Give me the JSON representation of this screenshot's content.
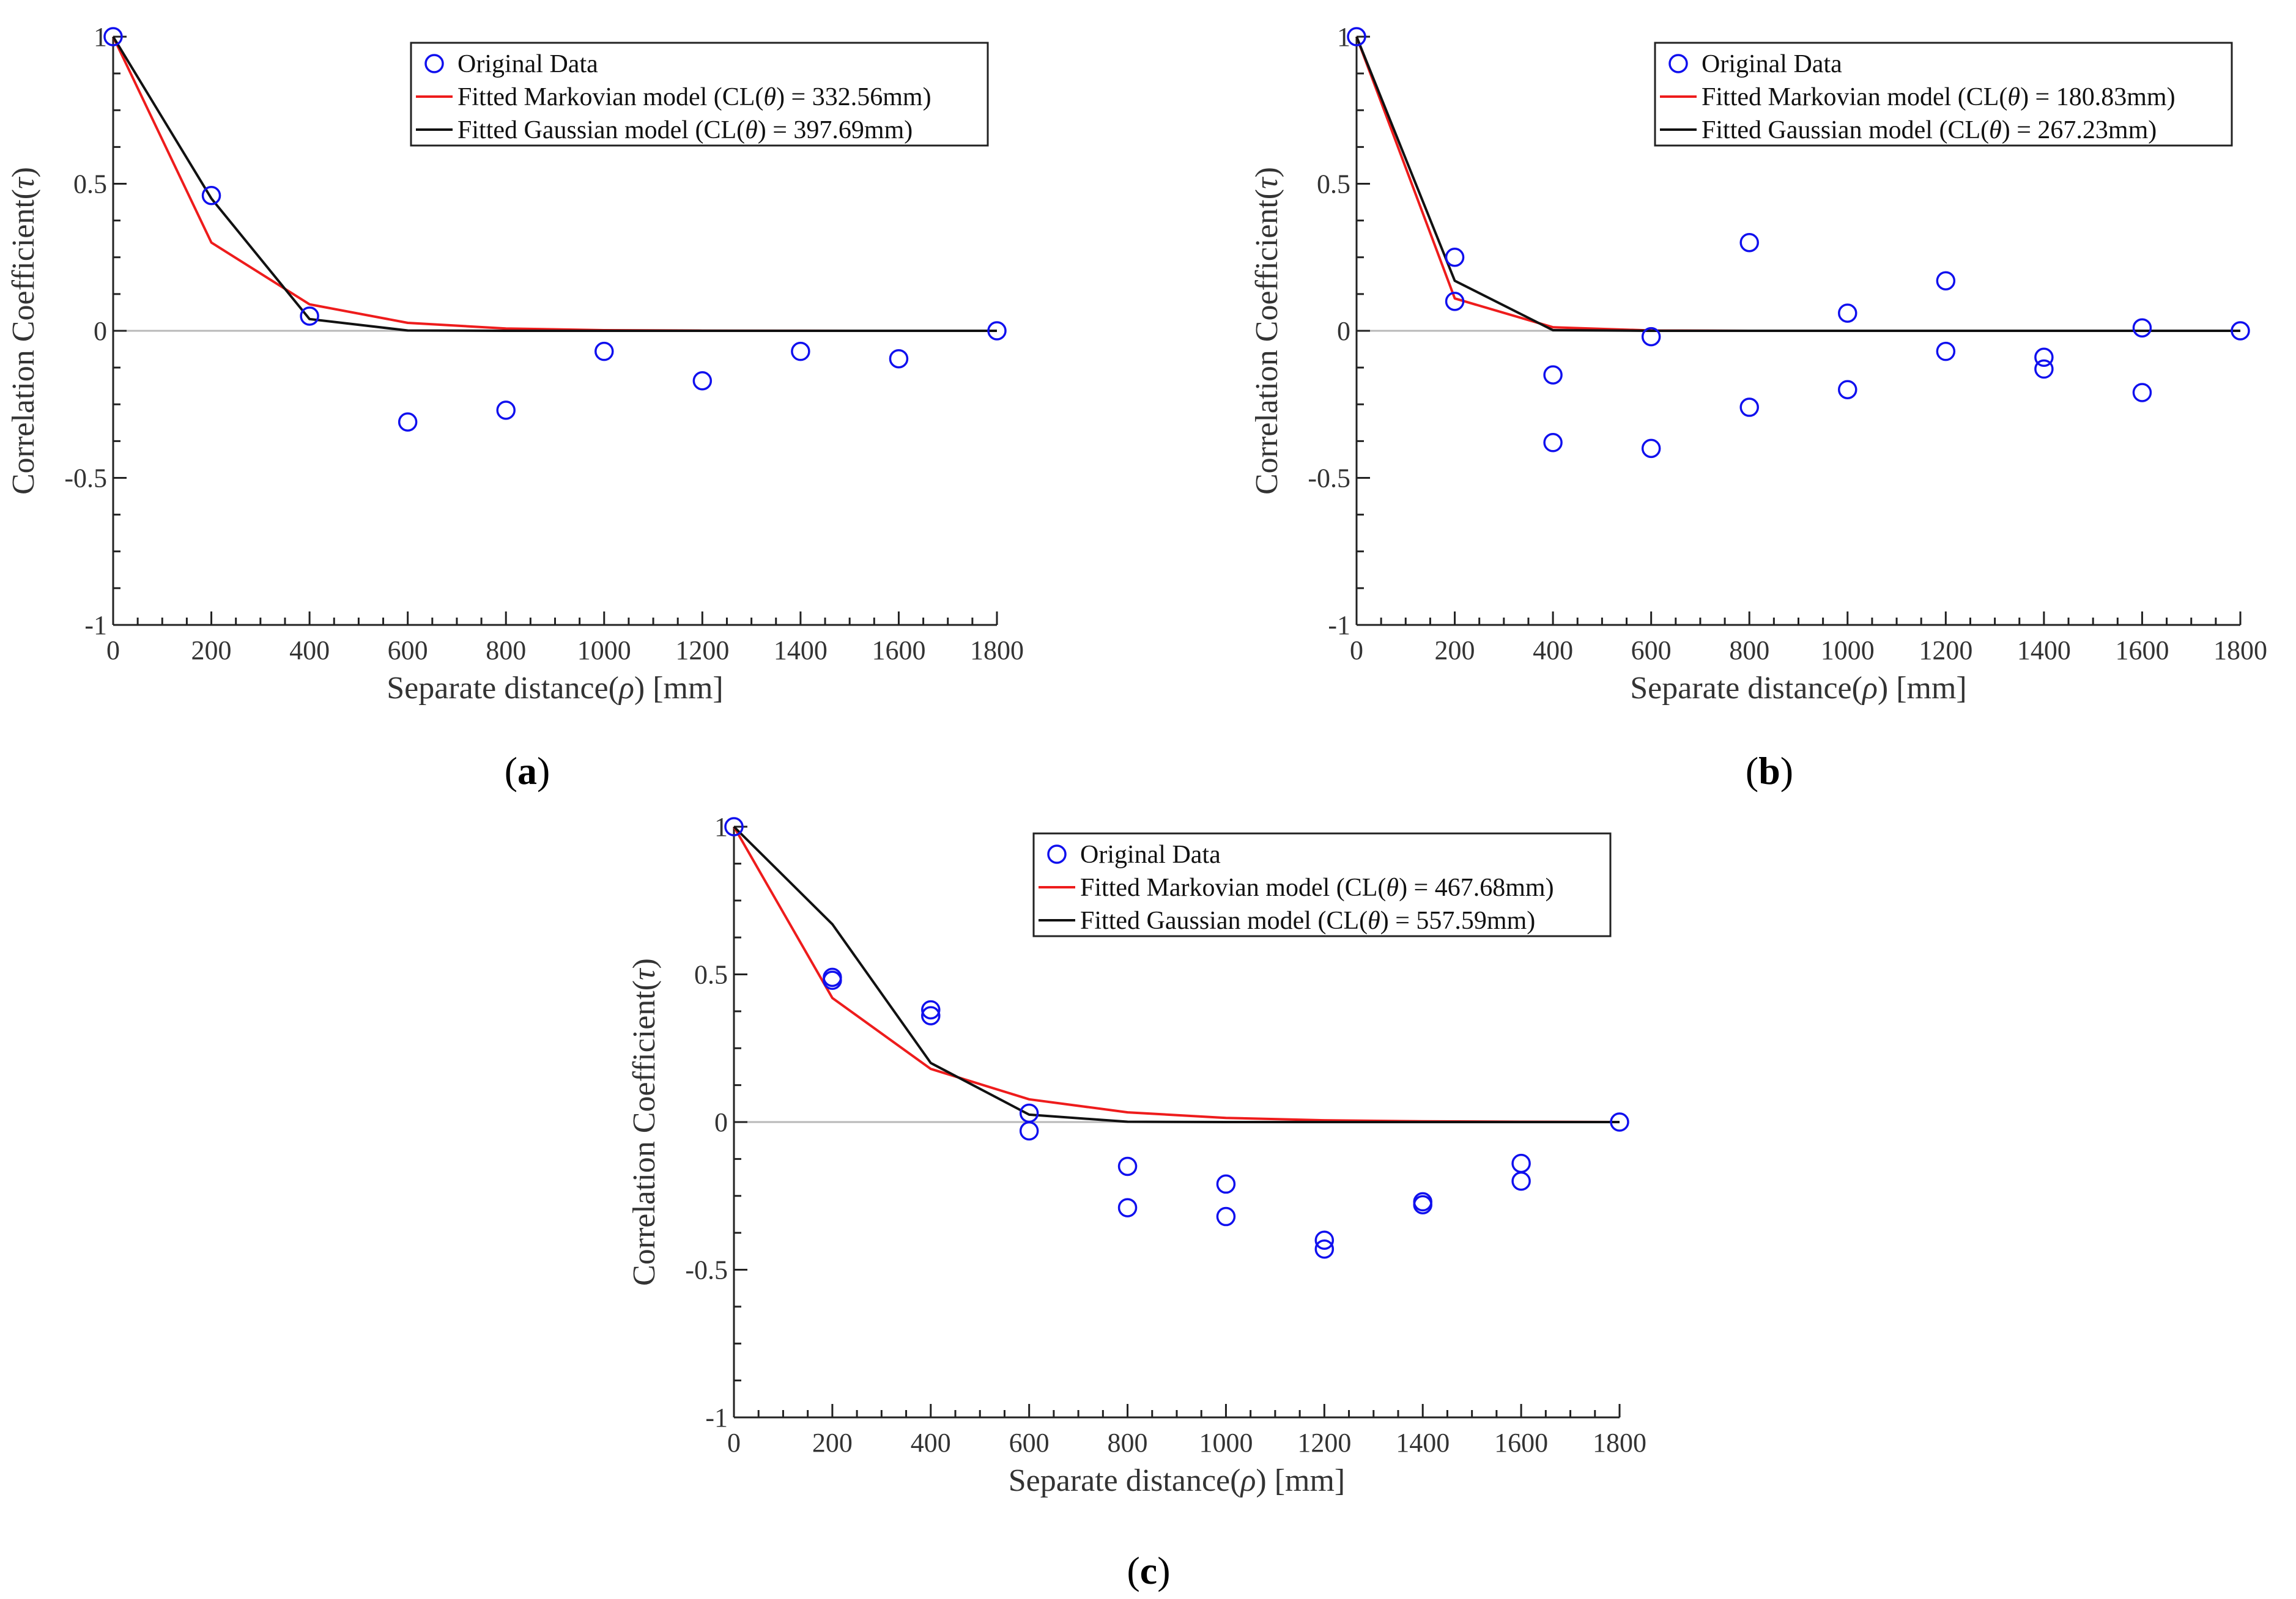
{
  "chart_data": [
    {
      "type": "scatter",
      "panel_label": {
        "open": "(",
        "letter": "a",
        "close": ")"
      },
      "xlabel": "Separate distance(ρ) [mm]",
      "ylabel": "Correlation Coefficient(τ)",
      "xlim": [
        0,
        1800
      ],
      "ylim": [
        -1,
        1
      ],
      "xticks": [
        0,
        200,
        400,
        600,
        800,
        1000,
        1200,
        1400,
        1600,
        1800
      ],
      "yticks": [
        -1,
        -0.5,
        0,
        0.5,
        1
      ],
      "xtick_labels": [
        "0",
        "200",
        "400",
        "600",
        "800",
        "1000",
        "1200",
        "1400",
        "1600",
        "1800"
      ],
      "ytick_labels": [
        "-1",
        "-0.5",
        "0",
        "0.5",
        "1"
      ],
      "legend_position": "top-right",
      "series": [
        {
          "name": "Original Data",
          "kind": "markers",
          "color": "#1010ee",
          "points": [
            [
              0,
              1.0
            ],
            [
              200,
              0.46
            ],
            [
              400,
              0.05
            ],
            [
              600,
              -0.31
            ],
            [
              800,
              -0.27
            ],
            [
              1000,
              -0.07
            ],
            [
              1200,
              -0.17
            ],
            [
              1400,
              -0.07
            ],
            [
              1600,
              -0.095
            ],
            [
              1800,
              0.0
            ]
          ]
        },
        {
          "name": "Fitted Markovian model (CL(θ) = 332.56mm)",
          "kind": "line",
          "color": "#ee1c1c",
          "points": [
            [
              0,
              1.0
            ],
            [
              200,
              0.3
            ],
            [
              400,
              0.09
            ],
            [
              600,
              0.027
            ],
            [
              800,
              0.008
            ],
            [
              1000,
              0.002
            ],
            [
              1200,
              0.0007
            ],
            [
              1400,
              0.0002
            ],
            [
              1600,
              0.0001
            ],
            [
              1800,
              0.0
            ]
          ]
        },
        {
          "name": "Fitted Gaussian model (CL(θ) = 397.69mm)",
          "kind": "line",
          "color": "#111111",
          "points": [
            [
              0,
              1.0
            ],
            [
              200,
              0.45
            ],
            [
              400,
              0.04
            ],
            [
              600,
              0.001
            ],
            [
              800,
              0.0
            ],
            [
              1000,
              0.0
            ],
            [
              1200,
              0.0
            ],
            [
              1400,
              0.0
            ],
            [
              1600,
              0.0
            ],
            [
              1800,
              0.0
            ]
          ]
        }
      ]
    },
    {
      "type": "scatter",
      "panel_label": {
        "open": "(",
        "letter": "b",
        "close": ")"
      },
      "xlabel": "Separate distance(ρ) [mm]",
      "ylabel": "Correlation Coefficient(τ)",
      "xlim": [
        0,
        1800
      ],
      "ylim": [
        -1,
        1
      ],
      "xticks": [
        0,
        200,
        400,
        600,
        800,
        1000,
        1200,
        1400,
        1600,
        1800
      ],
      "yticks": [
        -1,
        -0.5,
        0,
        0.5,
        1
      ],
      "xtick_labels": [
        "0",
        "200",
        "400",
        "600",
        "800",
        "1000",
        "1200",
        "1400",
        "1600",
        "1800"
      ],
      "ytick_labels": [
        "-1",
        "-0.5",
        "0",
        "0.5",
        "1"
      ],
      "legend_position": "top-right",
      "series": [
        {
          "name": "Original Data",
          "kind": "markers",
          "color": "#1010ee",
          "points": [
            [
              0,
              1.0
            ],
            [
              200,
              0.25
            ],
            [
              200,
              0.1
            ],
            [
              400,
              -0.15
            ],
            [
              400,
              -0.38
            ],
            [
              600,
              -0.02
            ],
            [
              600,
              -0.4
            ],
            [
              800,
              0.3
            ],
            [
              800,
              -0.26
            ],
            [
              1000,
              0.06
            ],
            [
              1000,
              -0.2
            ],
            [
              1200,
              0.17
            ],
            [
              1200,
              -0.07
            ],
            [
              1400,
              -0.09
            ],
            [
              1400,
              -0.13
            ],
            [
              1600,
              0.01
            ],
            [
              1600,
              -0.21
            ],
            [
              1800,
              0.0
            ]
          ]
        },
        {
          "name": "Fitted Markovian model (CL(θ) = 180.83mm)",
          "kind": "line",
          "color": "#ee1c1c",
          "points": [
            [
              0,
              1.0
            ],
            [
              200,
              0.11
            ],
            [
              400,
              0.012
            ],
            [
              600,
              0.001
            ],
            [
              800,
              0.0
            ],
            [
              1000,
              0.0
            ],
            [
              1200,
              0.0
            ],
            [
              1400,
              0.0
            ],
            [
              1600,
              0.0
            ],
            [
              1800,
              0.0
            ]
          ]
        },
        {
          "name": "Fitted Gaussian model (CL(θ) = 267.23mm)",
          "kind": "line",
          "color": "#111111",
          "points": [
            [
              0,
              1.0
            ],
            [
              200,
              0.17
            ],
            [
              400,
              0.002
            ],
            [
              600,
              0.0
            ],
            [
              800,
              0.0
            ],
            [
              1000,
              0.0
            ],
            [
              1200,
              0.0
            ],
            [
              1400,
              0.0
            ],
            [
              1600,
              0.0
            ],
            [
              1800,
              0.0
            ]
          ]
        }
      ]
    },
    {
      "type": "scatter",
      "panel_label": {
        "open": "(",
        "letter": "c",
        "close": ")"
      },
      "xlabel": "Separate distance(ρ) [mm]",
      "ylabel": "Correlation Coefficient(τ)",
      "xlim": [
        0,
        1800
      ],
      "ylim": [
        -1,
        1
      ],
      "xticks": [
        0,
        200,
        400,
        600,
        800,
        1000,
        1200,
        1400,
        1600,
        1800
      ],
      "yticks": [
        -1,
        -0.5,
        0,
        0.5,
        1
      ],
      "xtick_labels": [
        "0",
        "200",
        "400",
        "600",
        "800",
        "1000",
        "1200",
        "1400",
        "1600",
        "1800"
      ],
      "ytick_labels": [
        "-1",
        "-0.5",
        "0",
        "0.5",
        "1"
      ],
      "legend_position": "top-right",
      "series": [
        {
          "name": "Original Data",
          "kind": "markers",
          "color": "#1010ee",
          "points": [
            [
              0,
              1.0
            ],
            [
              200,
              0.49
            ],
            [
              200,
              0.48
            ],
            [
              400,
              0.38
            ],
            [
              400,
              0.36
            ],
            [
              600,
              0.03
            ],
            [
              600,
              -0.03
            ],
            [
              800,
              -0.15
            ],
            [
              800,
              -0.29
            ],
            [
              1000,
              -0.21
            ],
            [
              1000,
              -0.32
            ],
            [
              1200,
              -0.4
            ],
            [
              1200,
              -0.43
            ],
            [
              1400,
              -0.27
            ],
            [
              1400,
              -0.28
            ],
            [
              1600,
              -0.14
            ],
            [
              1600,
              -0.2
            ],
            [
              1800,
              0.0
            ]
          ]
        },
        {
          "name": "Fitted Markovian model (CL(θ) = 467.68mm)",
          "kind": "line",
          "color": "#ee1c1c",
          "points": [
            [
              0,
              1.0
            ],
            [
              200,
              0.42
            ],
            [
              400,
              0.18
            ],
            [
              600,
              0.077
            ],
            [
              800,
              0.033
            ],
            [
              1000,
              0.014
            ],
            [
              1200,
              0.006
            ],
            [
              1400,
              0.0025
            ],
            [
              1600,
              0.001
            ],
            [
              1800,
              0.0
            ]
          ]
        },
        {
          "name": "Fitted Gaussian model (CL(θ) = 557.59mm)",
          "kind": "line",
          "color": "#111111",
          "points": [
            [
              0,
              1.0
            ],
            [
              200,
              0.67
            ],
            [
              400,
              0.2
            ],
            [
              600,
              0.025
            ],
            [
              800,
              0.001
            ],
            [
              1000,
              0.0
            ],
            [
              1200,
              0.0
            ],
            [
              1400,
              0.0
            ],
            [
              1600,
              0.0
            ],
            [
              1800,
              0.0
            ]
          ]
        }
      ]
    }
  ]
}
